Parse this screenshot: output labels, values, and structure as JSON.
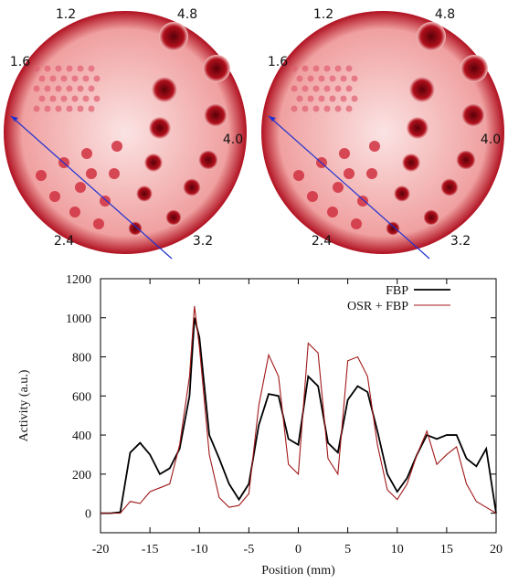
{
  "phantom_images": [
    {
      "labels": [
        "1.2",
        "4.8",
        "1.6",
        "4.0",
        "2.4",
        "3.2"
      ]
    },
    {
      "labels": [
        "1.2",
        "4.8",
        "1.6",
        "4.0",
        "2.4",
        "3.2"
      ]
    }
  ],
  "chart_data": {
    "type": "line",
    "x_label": "Position (mm)",
    "y_label": "Activity (a.u.)",
    "x": [
      -20,
      -19,
      -18,
      -17,
      -16,
      -15,
      -14,
      -13,
      -12,
      -11,
      -10.5,
      -10,
      -9,
      -8,
      -7,
      -6,
      -5,
      -4,
      -3,
      -2,
      -1,
      0,
      1,
      2,
      3,
      4,
      5,
      6,
      7,
      8,
      9,
      10,
      11,
      12,
      13,
      14,
      15,
      16,
      17,
      18,
      19,
      20
    ],
    "series": [
      {
        "name": "FBP",
        "color": "#000000",
        "values": [
          0,
          0,
          5,
          310,
          360,
          300,
          200,
          230,
          330,
          600,
          1000,
          900,
          400,
          280,
          150,
          70,
          150,
          450,
          610,
          600,
          380,
          350,
          700,
          650,
          360,
          310,
          580,
          650,
          620,
          420,
          200,
          110,
          180,
          300,
          400,
          380,
          400,
          400,
          280,
          240,
          330,
          0
        ]
      },
      {
        "name": "OSR + FBP",
        "color": "#a01818",
        "values": [
          0,
          0,
          0,
          60,
          50,
          110,
          130,
          150,
          350,
          700,
          1060,
          850,
          300,
          80,
          30,
          40,
          100,
          550,
          810,
          700,
          250,
          200,
          870,
          820,
          280,
          200,
          780,
          800,
          700,
          350,
          120,
          70,
          150,
          300,
          420,
          250,
          300,
          340,
          150,
          60,
          30,
          0
        ]
      }
    ],
    "xlim": [
      -20,
      20
    ],
    "xticks": [
      -20,
      -15,
      -10,
      -5,
      0,
      5,
      10,
      15,
      20
    ],
    "ylim": [
      -100,
      1200
    ],
    "yticks": [
      0,
      200,
      400,
      600,
      800,
      1000,
      1200
    ],
    "legend": "upper right"
  }
}
